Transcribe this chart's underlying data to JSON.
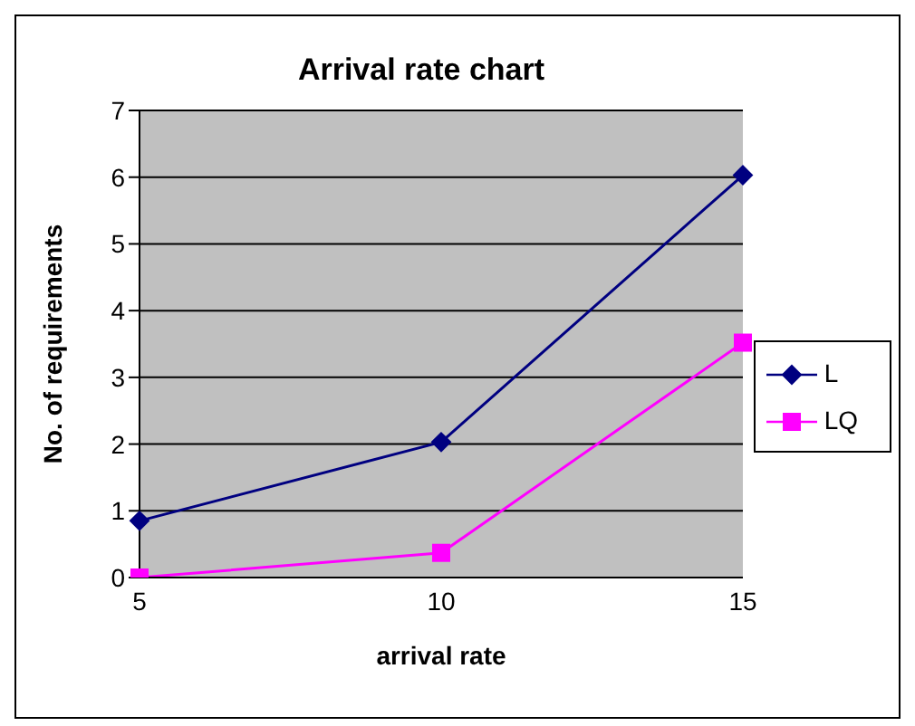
{
  "chart_data": {
    "type": "line",
    "title": "Arrival rate chart",
    "xlabel": "arrival rate",
    "ylabel": "No. of requirements",
    "categories": [
      "5",
      "10",
      "15"
    ],
    "series": [
      {
        "name": "L",
        "color": "#000080",
        "values": [
          0.85,
          2.03,
          6.03
        ],
        "marker": "diamond"
      },
      {
        "name": "LQ",
        "color": "#ff00ff",
        "values": [
          0,
          0.37,
          3.52
        ],
        "marker": "square"
      }
    ],
    "ylim": [
      0,
      7
    ],
    "yticks": [
      0,
      1,
      2,
      3,
      4,
      5,
      6,
      7
    ],
    "grid": "y",
    "legend": "right"
  }
}
